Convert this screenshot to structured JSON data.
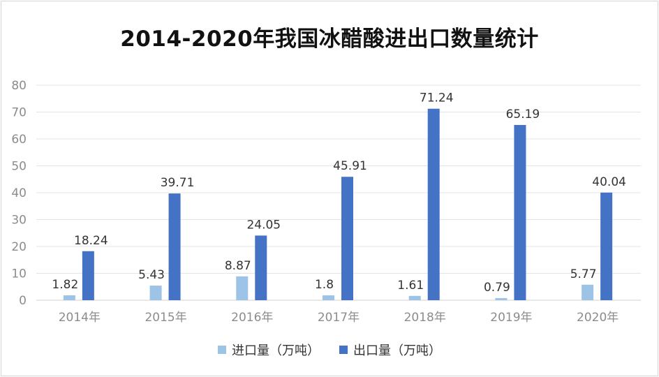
{
  "chart_data": {
    "type": "bar",
    "title": "2014-2020年我国冰醋酸进出口数量统计",
    "categories": [
      "2014年",
      "2015年",
      "2016年",
      "2017年",
      "2018年",
      "2019年",
      "2020年"
    ],
    "series": [
      {
        "name": "进口量（万吨）",
        "color": "#9dc3e6",
        "values": [
          1.82,
          5.43,
          8.87,
          1.8,
          1.61,
          0.79,
          5.77
        ]
      },
      {
        "name": "出口量（万吨）",
        "color": "#4472c4",
        "values": [
          18.24,
          39.71,
          24.05,
          45.91,
          71.24,
          65.19,
          40.04
        ]
      }
    ],
    "yticks": [
      "0",
      "10",
      "20",
      "30",
      "40",
      "50",
      "60",
      "70",
      "80"
    ],
    "ylim": [
      0,
      80
    ],
    "grid": true,
    "legend_position": "bottom"
  }
}
